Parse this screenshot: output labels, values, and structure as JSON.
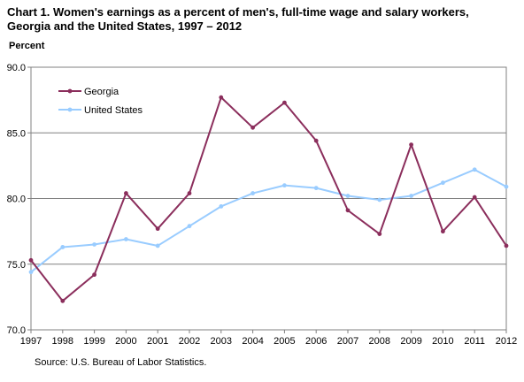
{
  "chart_data": {
    "type": "line",
    "title_line1": "Chart 1. Women's earnings as a percent of men's, full-time wage and salary workers,",
    "title_line2": "Georgia and the United States, 1997 – 2012",
    "ylabel": "Percent",
    "xlabel": "",
    "x": [
      "1997",
      "1998",
      "1999",
      "2000",
      "2001",
      "2002",
      "2003",
      "2004",
      "2005",
      "2006",
      "2007",
      "2008",
      "2009",
      "2010",
      "2011",
      "2012"
    ],
    "ylim": [
      70.0,
      90.0
    ],
    "yticks": [
      "70.0",
      "75.0",
      "80.0",
      "85.0",
      "90.0"
    ],
    "grid": true,
    "legend_position": "top-left",
    "series": [
      {
        "name": "Georgia",
        "color": "#8B2E5C",
        "values": [
          75.3,
          72.2,
          74.2,
          80.4,
          77.7,
          80.4,
          87.7,
          85.4,
          87.3,
          84.4,
          79.1,
          77.3,
          84.1,
          77.5,
          80.1,
          76.4
        ]
      },
      {
        "name": "United States",
        "color": "#99CCFF",
        "values": [
          74.4,
          76.3,
          76.5,
          76.9,
          76.4,
          77.9,
          79.4,
          80.4,
          81.0,
          80.8,
          80.2,
          79.9,
          80.2,
          81.2,
          82.2,
          80.9
        ]
      }
    ],
    "source": "Source: U.S. Bureau of Labor Statistics."
  }
}
